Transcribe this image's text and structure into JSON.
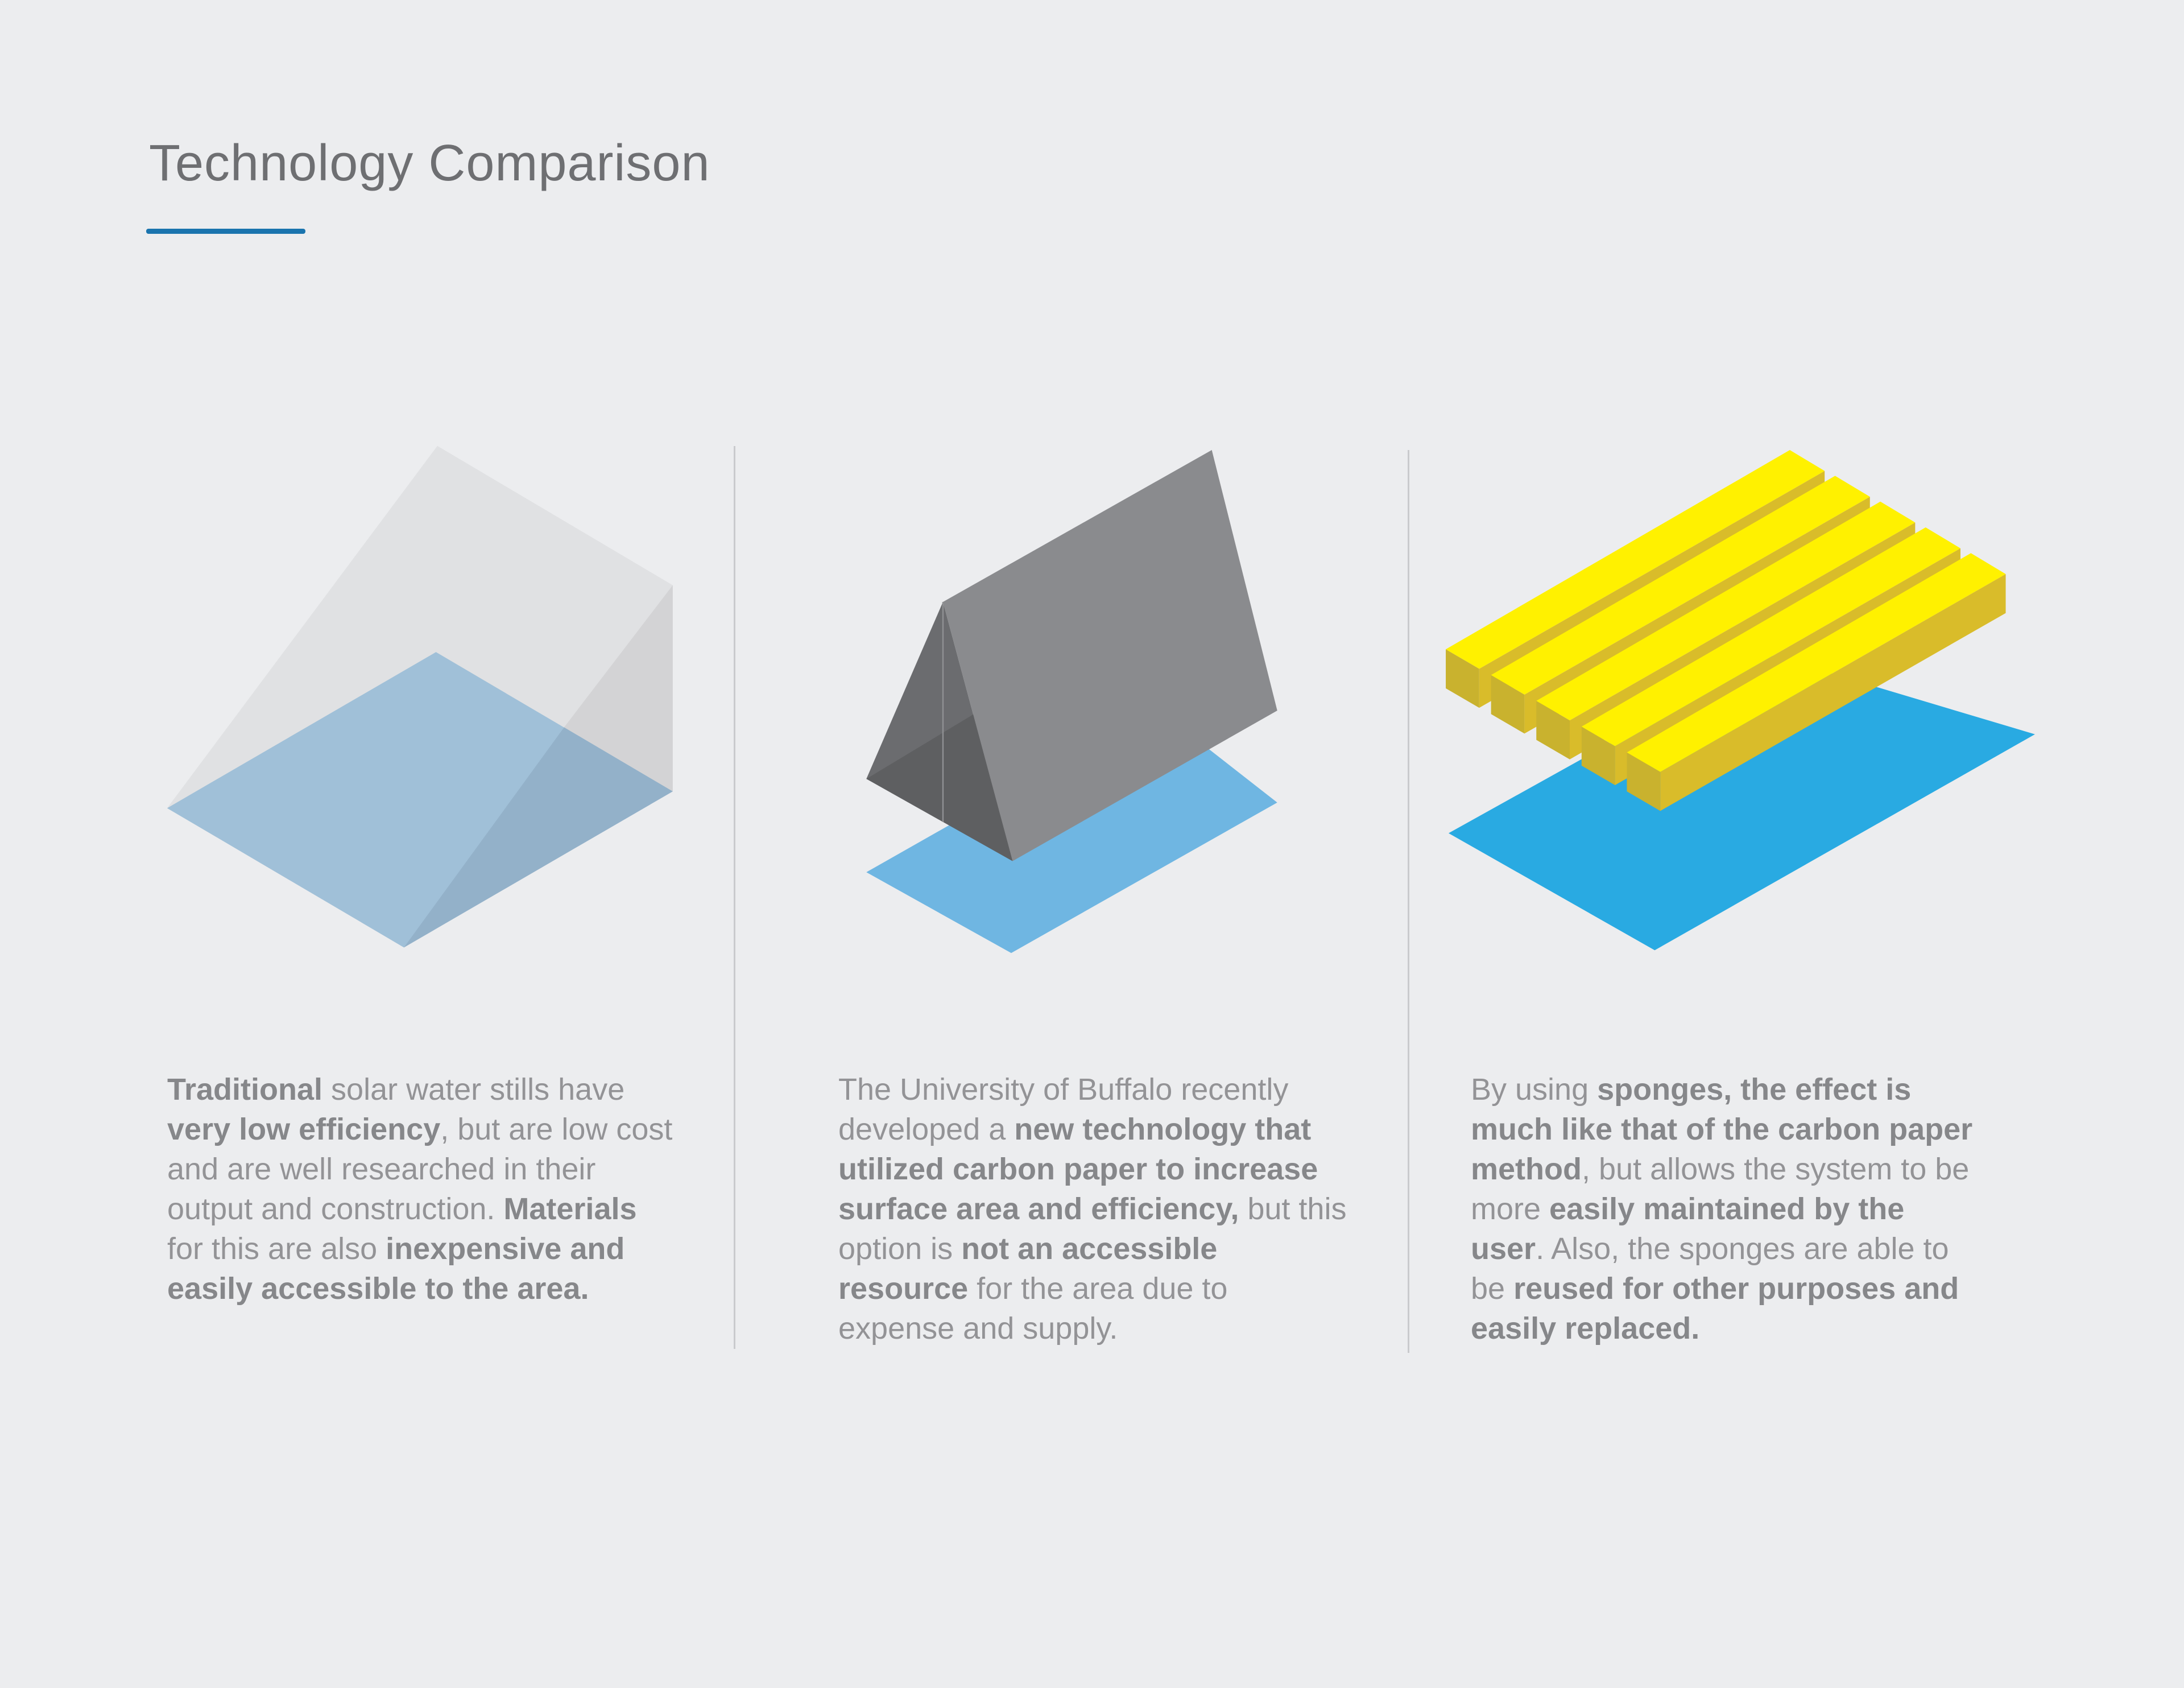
{
  "header": {
    "title": "Technology Comparison",
    "accent_color": "#1a74ae"
  },
  "columns": [
    {
      "illustration": "transparent-solar-still-prism",
      "colors": {
        "base": "#a0c0d8",
        "glass": "#e0e1e3"
      },
      "paragraph": [
        {
          "text": "Traditional",
          "bold": true
        },
        {
          "text": " solar water stills have ",
          "bold": false
        },
        {
          "text": "very low efficiency",
          "bold": true
        },
        {
          "text": ", but are low cost and are well researched in their output and construction. ",
          "bold": false
        },
        {
          "text": "Materials",
          "bold": true
        },
        {
          "text": " for this are also ",
          "bold": false
        },
        {
          "text": "inexpensive and easily accessible to the area.",
          "bold": true
        }
      ]
    },
    {
      "illustration": "carbon-paper-tent",
      "colors": {
        "base": "#6fb6e2",
        "paper": "#8a8b8e"
      },
      "paragraph": [
        {
          "text": "The University of Buffalo recently developed a ",
          "bold": false
        },
        {
          "text": "new technology that utilized carbon paper to increase surface area and efficiency,",
          "bold": true
        },
        {
          "text": " but this option is ",
          "bold": false
        },
        {
          "text": "not an accessible resource",
          "bold": true
        },
        {
          "text": " for the area due to expense and supply.",
          "bold": false
        }
      ]
    },
    {
      "illustration": "sponge-bars",
      "colors": {
        "base": "#29aae2",
        "sponge": "#fff100"
      },
      "paragraph": [
        {
          "text": "By using ",
          "bold": false
        },
        {
          "text": "sponges, the effect is much like that of the carbon paper method",
          "bold": true
        },
        {
          "text": ", but allows the system to be more ",
          "bold": false
        },
        {
          "text": "easily maintained by the user",
          "bold": true
        },
        {
          "text": ". Also, the sponges are able to be ",
          "bold": false
        },
        {
          "text": "reused for other purposes and easily replaced.",
          "bold": true
        }
      ]
    }
  ]
}
